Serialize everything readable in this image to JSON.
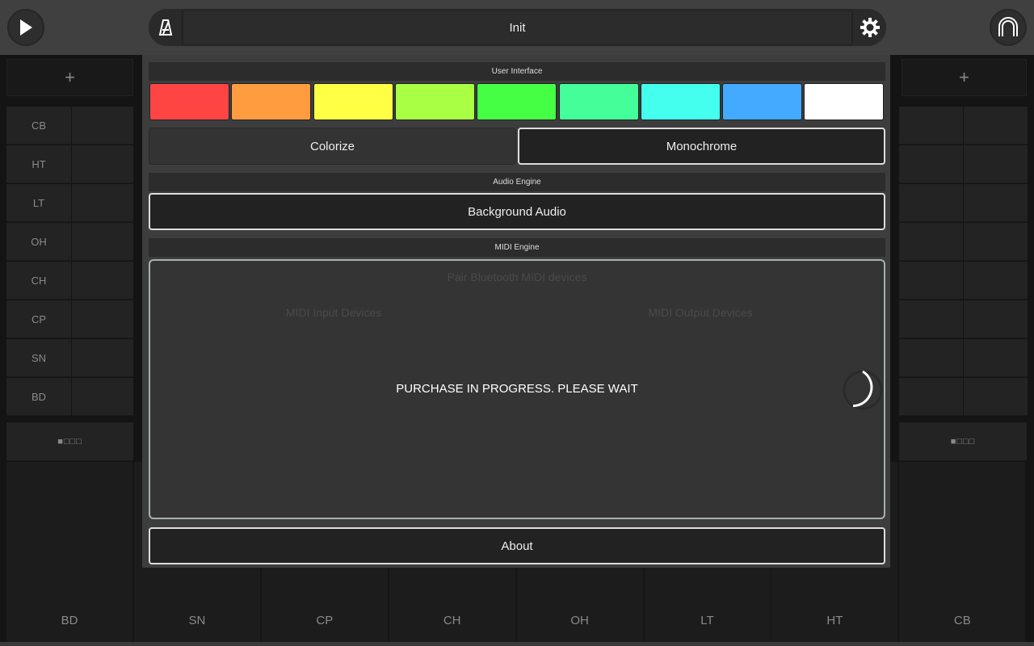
{
  "header": {
    "title": "Init",
    "play_icon": "play-icon",
    "metronome_icon": "metronome-icon",
    "settings_icon": "gear-icon",
    "logo_icon": "arch-logo-icon"
  },
  "background": {
    "add_label": "+",
    "tracks": [
      "CB",
      "HT",
      "LT",
      "OH",
      "CH",
      "CP",
      "SN",
      "BD"
    ],
    "pattern_indicator": "■□□□",
    "pads": [
      "BD",
      "SN",
      "CP",
      "CH",
      "OH",
      "LT",
      "HT",
      "CB"
    ]
  },
  "settings": {
    "user_interface_label": "User Interface",
    "colors": [
      "#ff4444",
      "#ff9c3f",
      "#ffff44",
      "#a8ff44",
      "#44ff44",
      "#44ff99",
      "#44ffee",
      "#44aaff",
      "#ffffff"
    ],
    "colorize_label": "Colorize",
    "monochrome_label": "Monochrome",
    "selected_mode": "Monochrome",
    "audio_engine_label": "Audio Engine",
    "background_audio_label": "Background Audio",
    "midi_engine_label": "MIDI Engine",
    "pair_bluetooth_label": "Pair Bluetooth MIDI devices",
    "midi_input_label": "MIDI Input Devices",
    "midi_output_label": "MIDI Output Devices",
    "purchase_message": "PURCHASE IN PROGRESS. PLEASE WAIT",
    "about_label": "About"
  }
}
